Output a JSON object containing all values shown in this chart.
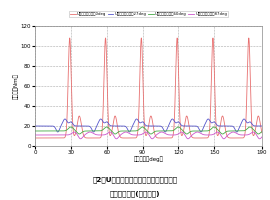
{
  "title_line1": "噣2　U相への励磁開始角度の違いによる",
  "title_line2": "トルクの比較(負荷解析)",
  "xlabel": "回転角度（deg）",
  "ylabel": "トルク（Nm）",
  "xlim": [
    0,
    190
  ],
  "ylim": [
    0,
    120
  ],
  "xticks": [
    0,
    30,
    60,
    90,
    120,
    150,
    190
  ],
  "yticks": [
    0,
    20,
    40,
    60,
    80,
    100,
    120
  ],
  "legend_labels": [
    "U相励磁開始角度0deg",
    "U相励磁開始角度27deg",
    "U相励磁開始角度60deg",
    "U相励磁開始角度87deg"
  ],
  "line_colors": [
    "#e87070",
    "#5555cc",
    "#44aa44",
    "#cc55cc"
  ],
  "background_color": "#ffffff",
  "plot_bg_color": "#ffffff",
  "grid_color": "#aaaaaa",
  "period": 30
}
